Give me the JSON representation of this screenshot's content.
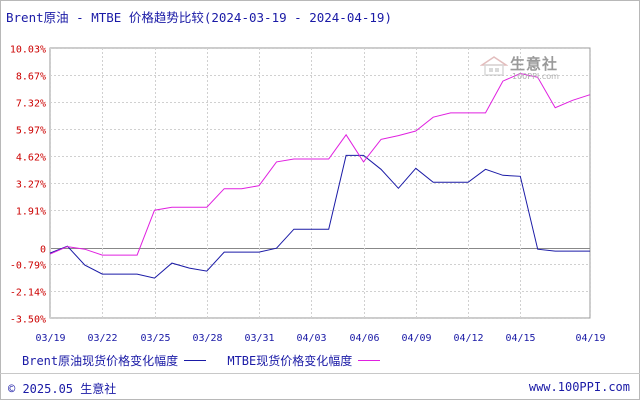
{
  "title": "Brent原油 - MTBE 价格趋势比较(2024-03-19 - 2024-04-19)",
  "legend": [
    {
      "label": "Brent原油现货价格变化幅度",
      "color": "#1a1aa6"
    },
    {
      "label": "MTBE现货价格变化幅度",
      "color": "#e020e0"
    }
  ],
  "footer": {
    "copyright": "© 2025.05 生意社",
    "url": "www.100PPI.com"
  },
  "watermark": {
    "name": "生意社",
    "url": "100PPI.com"
  },
  "chart_data": {
    "type": "line",
    "y_ticks": [
      "10.03%",
      "8.67%",
      "7.32%",
      "5.97%",
      "4.62%",
      "3.27%",
      "1.91%",
      "0",
      "-0.79%",
      "-2.14%",
      "-3.50%"
    ],
    "y_tick_values": [
      10.03,
      8.67,
      7.32,
      5.97,
      4.62,
      3.27,
      1.91,
      0,
      -0.79,
      -2.14,
      -3.5
    ],
    "ylim": [
      -3.5,
      10.03
    ],
    "x_ticks": [
      "03/19",
      "03/22",
      "03/25",
      "03/28",
      "03/31",
      "04/03",
      "04/06",
      "04/09",
      "04/12",
      "04/15",
      "04/19"
    ],
    "x_tick_days": [
      0,
      3,
      6,
      9,
      12,
      15,
      18,
      21,
      24,
      27,
      31
    ],
    "xlim": [
      0,
      31
    ],
    "series": [
      {
        "name": "Brent原油现货价格变化幅度",
        "color": "#1a1aa6",
        "x": [
          0,
          1,
          2,
          3,
          4,
          5,
          6,
          7,
          8,
          9,
          10,
          11,
          12,
          13,
          14,
          15,
          16,
          17,
          18,
          19,
          20,
          21,
          22,
          23,
          24,
          25,
          26,
          27,
          28,
          29,
          30,
          31
        ],
        "values": [
          -0.25,
          0.1,
          -0.85,
          -1.3,
          -1.3,
          -1.3,
          -1.5,
          -0.75,
          -1.0,
          -1.15,
          -0.2,
          -0.2,
          -0.2,
          0.0,
          0.95,
          0.95,
          0.95,
          4.65,
          4.65,
          3.95,
          3.0,
          4.0,
          3.3,
          3.3,
          3.3,
          3.95,
          3.65,
          3.6,
          -0.05,
          -0.15,
          -0.15,
          -0.15
        ]
      },
      {
        "name": "MTBE现货价格变化幅度",
        "color": "#e020e0",
        "x": [
          0,
          1,
          2,
          3,
          4,
          5,
          6,
          7,
          8,
          9,
          10,
          11,
          12,
          13,
          14,
          15,
          16,
          17,
          18,
          19,
          20,
          21,
          22,
          23,
          24,
          25,
          26,
          27,
          28,
          29,
          30,
          31
        ],
        "values": [
          -0.3,
          0.08,
          -0.05,
          -0.35,
          -0.35,
          -0.35,
          1.9,
          2.05,
          2.05,
          2.05,
          2.98,
          2.98,
          3.13,
          4.32,
          4.47,
          4.47,
          4.47,
          5.68,
          4.32,
          5.45,
          5.64,
          5.87,
          6.56,
          6.78,
          6.78,
          6.78,
          8.37,
          8.75,
          8.56,
          7.04,
          7.41,
          7.69
        ]
      }
    ]
  }
}
